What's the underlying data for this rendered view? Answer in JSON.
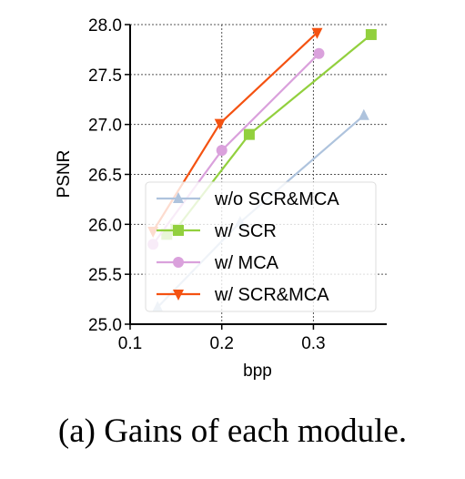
{
  "chart_data": {
    "type": "line",
    "xlabel": "bpp",
    "ylabel": "PSNR",
    "xlim": [
      0.1,
      0.38
    ],
    "ylim": [
      25.0,
      28.0
    ],
    "xticks": [
      0.1,
      0.2,
      0.3
    ],
    "yticks": [
      25.0,
      25.5,
      26.0,
      26.5,
      27.0,
      27.5,
      28.0
    ],
    "xtick_labels": [
      "0.1",
      "0.2",
      "0.3"
    ],
    "ytick_labels": [
      "25.0",
      "25.5",
      "26.0",
      "26.5",
      "27.0",
      "27.5",
      "28.0"
    ],
    "grid": true,
    "legend_position": "lower-right",
    "series": [
      {
        "name": "w/o SCR&MCA",
        "color": "#aec3dd",
        "marker": "triangle-up",
        "x": [
          0.13,
          0.22,
          0.355
        ],
        "y": [
          25.17,
          26.02,
          27.09
        ]
      },
      {
        "name": "w/ SCR",
        "color": "#92d03e",
        "marker": "square",
        "x": [
          0.14,
          0.15,
          0.23,
          0.363
        ],
        "y": [
          25.9,
          25.95,
          26.9,
          27.9
        ]
      },
      {
        "name": "w/ MCA",
        "color": "#daa1dc",
        "marker": "circle",
        "x": [
          0.125,
          0.2,
          0.306
        ],
        "y": [
          25.8,
          26.74,
          27.71
        ]
      },
      {
        "name": "w/ SCR&MCA",
        "color": "#f45211",
        "marker": "triangle-down",
        "x": [
          0.125,
          0.198,
          0.304
        ],
        "y": [
          25.93,
          27.01,
          27.92
        ]
      }
    ]
  },
  "caption": "(a) Gains of each module."
}
